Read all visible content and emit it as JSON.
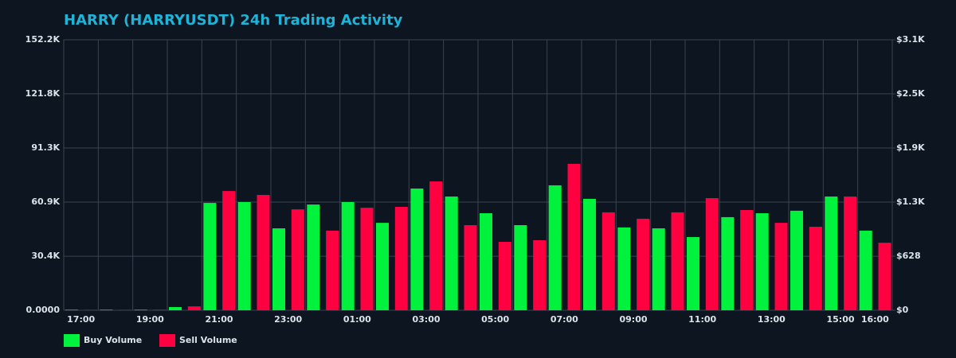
{
  "chart_data": {
    "type": "bar",
    "title": "HARRY (HARRYUSDT) 24h Trading Activity",
    "categories": [
      "17:00",
      null,
      "19:00",
      null,
      "21:00",
      null,
      "23:00",
      null,
      "01:00",
      null,
      "03:00",
      null,
      "05:00",
      null,
      "07:00",
      null,
      "09:00",
      null,
      "11:00",
      null,
      "13:00",
      null,
      "15:00",
      "16:00"
    ],
    "series": [
      {
        "name": "Buy Volume",
        "color": "#00f23d",
        "values": [
          300,
          300,
          300,
          1800,
          60400,
          60900,
          46100,
          59500,
          60900,
          49200,
          68500,
          64000,
          54600,
          47900,
          70300,
          62700,
          46600,
          46100,
          41200,
          52400,
          54600,
          56000,
          64000,
          44800
        ]
      },
      {
        "name": "Sell Volume",
        "color": "#ff0040",
        "values": [
          200,
          200,
          300,
          2200,
          67100,
          64900,
          56800,
          44800,
          57700,
          58200,
          72500,
          47900,
          38500,
          39400,
          82400,
          55100,
          51500,
          55100,
          63100,
          56400,
          49200,
          47000,
          64000,
          38000
        ]
      }
    ],
    "ylim": [
      0,
      152200
    ],
    "yticks": [
      {
        "value": 0,
        "label": "0.0000"
      },
      {
        "value": 30400,
        "label": "30.4K"
      },
      {
        "value": 60900,
        "label": "60.9K"
      },
      {
        "value": 91300,
        "label": "91.3K"
      },
      {
        "value": 121800,
        "label": "121.8K"
      },
      {
        "value": 152200,
        "label": "152.2K"
      }
    ],
    "y2lim": [
      0,
      3140
    ],
    "y2ticks": [
      {
        "value": 0,
        "label": "$0"
      },
      {
        "value": 628,
        "label": "$628"
      },
      {
        "value": 1256,
        "label": "$1.3K"
      },
      {
        "value": 1884,
        "label": "$1.9K"
      },
      {
        "value": 2512,
        "label": "$2.5K"
      },
      {
        "value": 3140,
        "label": "$3.1K"
      }
    ],
    "grid": true,
    "legend": "bottom-left"
  }
}
